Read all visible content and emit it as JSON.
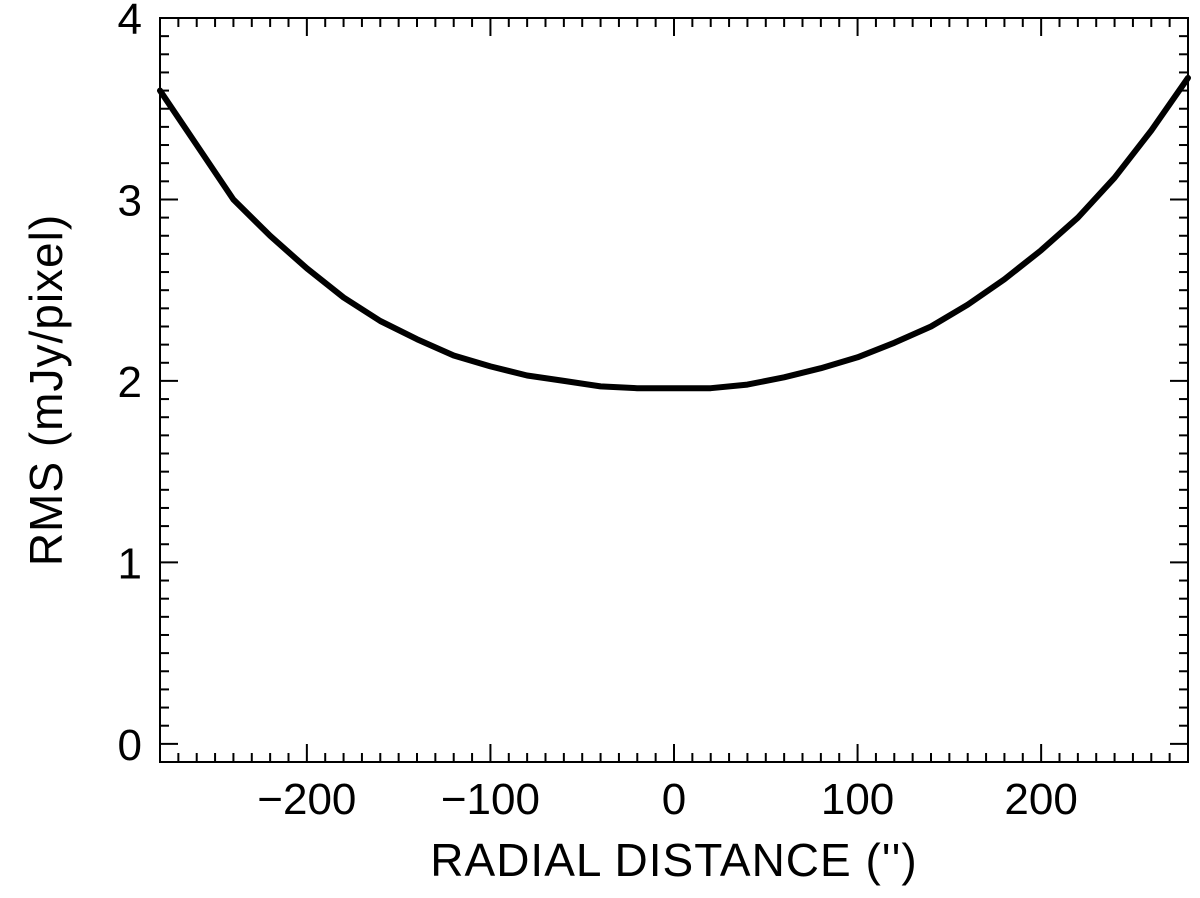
{
  "chart_data": {
    "type": "line",
    "title": "",
    "xlabel": "RADIAL DISTANCE ('')",
    "ylabel": "RMS (mJy/pixel)",
    "xlim": [
      -280,
      280
    ],
    "ylim": [
      -0.1,
      4.0
    ],
    "x_ticks": [
      {
        "value": -200,
        "label": "−200"
      },
      {
        "value": -100,
        "label": "−100"
      },
      {
        "value": 0,
        "label": "0"
      },
      {
        "value": 100,
        "label": "100"
      },
      {
        "value": 200,
        "label": "200"
      }
    ],
    "y_ticks": [
      {
        "value": 0,
        "label": "0"
      },
      {
        "value": 1,
        "label": "1"
      },
      {
        "value": 2,
        "label": "2"
      },
      {
        "value": 3,
        "label": "3"
      },
      {
        "value": 4,
        "label": "4"
      }
    ],
    "x_minor_step": 10,
    "y_minor_step": 0.1,
    "grid": false,
    "legend": "none",
    "line_color": "#000000",
    "series": [
      {
        "x": [
          -280,
          -260,
          -240,
          -220,
          -200,
          -180,
          -160,
          -140,
          -120,
          -100,
          -80,
          -60,
          -40,
          -20,
          0,
          20,
          40,
          60,
          80,
          100,
          120,
          140,
          160,
          180,
          200,
          220,
          240,
          260,
          280
        ],
        "values": [
          3.6,
          3.3,
          3.0,
          2.8,
          2.62,
          2.46,
          2.33,
          2.23,
          2.14,
          2.08,
          2.03,
          2.0,
          1.97,
          1.96,
          1.96,
          1.96,
          1.98,
          2.02,
          2.07,
          2.13,
          2.21,
          2.3,
          2.42,
          2.56,
          2.72,
          2.9,
          3.12,
          3.38,
          3.67
        ]
      }
    ]
  }
}
